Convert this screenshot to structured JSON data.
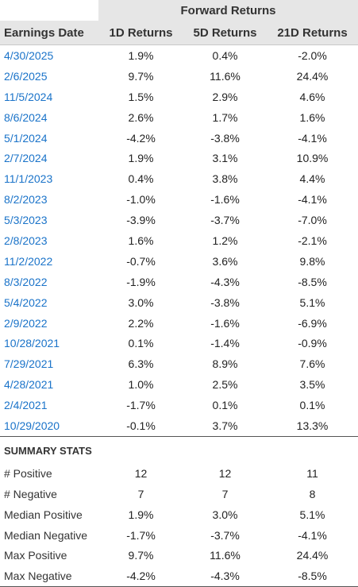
{
  "header": {
    "group_label": "Forward Returns",
    "col_date": "Earnings Date",
    "col_1d": "1D Returns",
    "col_5d": "5D Returns",
    "col_21d": "21D Returns"
  },
  "rows": [
    {
      "date": "4/30/2025",
      "d1": "1.9%",
      "d5": "0.4%",
      "d21": "-2.0%"
    },
    {
      "date": "2/6/2025",
      "d1": "9.7%",
      "d5": "11.6%",
      "d21": "24.4%"
    },
    {
      "date": "11/5/2024",
      "d1": "1.5%",
      "d5": "2.9%",
      "d21": "4.6%"
    },
    {
      "date": "8/6/2024",
      "d1": "2.6%",
      "d5": "1.7%",
      "d21": "1.6%"
    },
    {
      "date": "5/1/2024",
      "d1": "-4.2%",
      "d5": "-3.8%",
      "d21": "-4.1%"
    },
    {
      "date": "2/7/2024",
      "d1": "1.9%",
      "d5": "3.1%",
      "d21": "10.9%"
    },
    {
      "date": "11/1/2023",
      "d1": "0.4%",
      "d5": "3.8%",
      "d21": "4.4%"
    },
    {
      "date": "8/2/2023",
      "d1": "-1.0%",
      "d5": "-1.6%",
      "d21": "-4.1%"
    },
    {
      "date": "5/3/2023",
      "d1": "-3.9%",
      "d5": "-3.7%",
      "d21": "-7.0%"
    },
    {
      "date": "2/8/2023",
      "d1": "1.6%",
      "d5": "1.2%",
      "d21": "-2.1%"
    },
    {
      "date": "11/2/2022",
      "d1": "-0.7%",
      "d5": "3.6%",
      "d21": "9.8%"
    },
    {
      "date": "8/3/2022",
      "d1": "-1.9%",
      "d5": "-4.3%",
      "d21": "-8.5%"
    },
    {
      "date": "5/4/2022",
      "d1": "3.0%",
      "d5": "-3.8%",
      "d21": "5.1%"
    },
    {
      "date": "2/9/2022",
      "d1": "2.2%",
      "d5": "-1.6%",
      "d21": "-6.9%"
    },
    {
      "date": "10/28/2021",
      "d1": "0.1%",
      "d5": "-1.4%",
      "d21": "-0.9%"
    },
    {
      "date": "7/29/2021",
      "d1": "6.3%",
      "d5": "8.9%",
      "d21": "7.6%"
    },
    {
      "date": "4/28/2021",
      "d1": "1.0%",
      "d5": "2.5%",
      "d21": "3.5%"
    },
    {
      "date": "2/4/2021",
      "d1": "-1.7%",
      "d5": "0.1%",
      "d21": "0.1%"
    },
    {
      "date": "10/29/2020",
      "d1": "-0.1%",
      "d5": "3.7%",
      "d21": "13.3%"
    }
  ],
  "summary": {
    "title": "SUMMARY STATS",
    "stats": [
      {
        "label": "# Positive",
        "d1": "12",
        "d5": "12",
        "d21": "11"
      },
      {
        "label": "# Negative",
        "d1": "7",
        "d5": "7",
        "d21": "8"
      },
      {
        "label": "Median Positive",
        "d1": "1.9%",
        "d5": "3.0%",
        "d21": "5.1%"
      },
      {
        "label": "Median Negative",
        "d1": "-1.7%",
        "d5": "-3.7%",
        "d21": "-4.1%"
      },
      {
        "label": "Max Positive",
        "d1": "9.7%",
        "d5": "11.6%",
        "d21": "24.4%"
      },
      {
        "label": "Max Negative",
        "d1": "-4.2%",
        "d5": "-4.3%",
        "d21": "-8.5%"
      }
    ]
  },
  "colors": {
    "header_bg": "#e6e6e6",
    "date_link": "#1a73c9",
    "text": "#222222"
  }
}
